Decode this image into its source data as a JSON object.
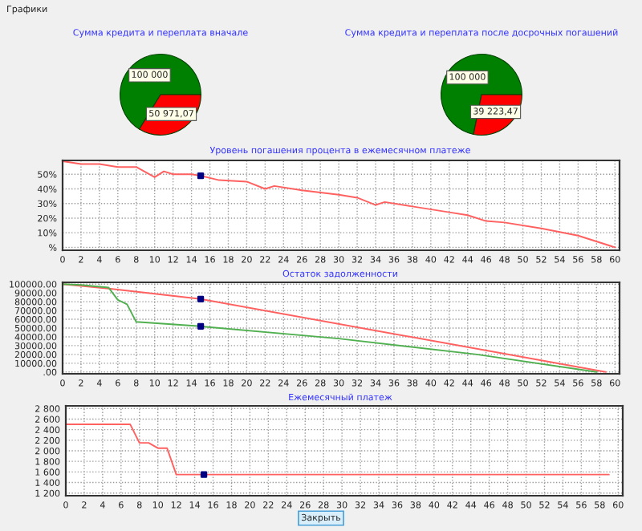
{
  "chart_data": [
    {
      "type": "pie",
      "title": "Сумма кредита и переплата вначале",
      "categories": [
        null,
        null
      ],
      "values": [
        100000,
        50971.07
      ],
      "colors": [
        "#008000",
        "#ff0000"
      ],
      "value_labels": [
        "100 000",
        "50 971,07"
      ],
      "annotations": [
        "Графики"
      ]
    },
    {
      "type": "pie",
      "title": "Сумма кредита и переплата после досрочных погашений",
      "categories": [
        null,
        null
      ],
      "values": [
        100000,
        39223.47
      ],
      "colors": [
        "#008000",
        "#ff0000"
      ],
      "value_labels": [
        "100 000",
        "39 223,47"
      ]
    },
    {
      "type": "line",
      "title": "Уровень погашения процента в ежемесячном платеже",
      "xlim": [
        0,
        60.5
      ],
      "xticks": [
        0,
        2,
        4,
        6,
        8,
        10,
        12,
        14,
        16,
        18,
        20,
        22,
        24,
        26,
        28,
        30,
        32,
        34,
        36,
        38,
        40,
        42,
        44,
        46,
        48,
        50,
        52,
        54,
        56,
        58,
        60
      ],
      "ylim": [
        -2,
        59.5
      ],
      "yticks": [
        {
          "value": 0,
          "label": "%"
        },
        {
          "value": 10,
          "label": "10%"
        },
        {
          "value": 20,
          "label": "20%"
        },
        {
          "value": 30,
          "label": "30%"
        },
        {
          "value": 40,
          "label": "40%"
        },
        {
          "value": 50,
          "label": "50%"
        }
      ],
      "grid": true,
      "series": [
        {
          "color": "#ff6060",
          "x": [
            0,
            2,
            4,
            6,
            8,
            10,
            11,
            12,
            14,
            15,
            17,
            20,
            22,
            23,
            26,
            30,
            32,
            34,
            35,
            38,
            42,
            44,
            46,
            48,
            52,
            56,
            60
          ],
          "values": [
            59,
            57,
            57,
            55,
            55,
            48,
            52,
            50,
            50,
            49,
            46,
            45,
            40,
            42,
            39,
            36,
            34,
            29,
            31,
            28,
            24,
            22,
            18,
            17,
            13,
            8,
            0
          ]
        },
        {
          "type": "scatter",
          "color": "#000080",
          "x": [
            15
          ],
          "values": [
            49
          ]
        }
      ]
    },
    {
      "type": "line",
      "title": "Остаток задолженности",
      "xlim": [
        0,
        60.5
      ],
      "xticks": [
        0,
        2,
        4,
        6,
        8,
        10,
        12,
        14,
        16,
        18,
        20,
        22,
        24,
        26,
        28,
        30,
        32,
        34,
        36,
        38,
        40,
        42,
        44,
        46,
        48,
        50,
        52,
        54,
        56,
        58,
        60
      ],
      "ylim": [
        -2000,
        102000
      ],
      "yticks": [
        {
          "value": 0,
          "label": ".00"
        },
        {
          "value": 10000,
          "label": "10000.00"
        },
        {
          "value": 20000,
          "label": "20000.00"
        },
        {
          "value": 30000,
          "label": "30000.00"
        },
        {
          "value": 40000,
          "label": "40000.00"
        },
        {
          "value": 50000,
          "label": "50000.00"
        },
        {
          "value": 60000,
          "label": "60000.00"
        },
        {
          "value": 70000,
          "label": "70000.00"
        },
        {
          "value": 80000,
          "label": "80000.00"
        },
        {
          "value": 90000,
          "label": "90000.00"
        },
        {
          "value": 100000,
          "label": "100000.00"
        }
      ],
      "grid": true,
      "series": [
        {
          "color": "#ff6060",
          "x": [
            0,
            5,
            15,
            59
          ],
          "values": [
            100000,
            95000,
            83000,
            0
          ]
        },
        {
          "color": "#50b050",
          "x": [
            0,
            2,
            5,
            6,
            7,
            8,
            15,
            30,
            45,
            58
          ],
          "values": [
            100000,
            99000,
            96000,
            82000,
            77000,
            57000,
            52000,
            38000,
            20000,
            0
          ]
        },
        {
          "type": "scatter",
          "color": "#000080",
          "x": [
            15,
            15
          ],
          "values": [
            83000,
            52000
          ]
        }
      ]
    },
    {
      "type": "line",
      "title": "Ежемесячный платеж",
      "xlim": [
        0,
        60.5
      ],
      "xticks": [
        0,
        2,
        4,
        6,
        8,
        10,
        12,
        14,
        16,
        18,
        20,
        22,
        24,
        26,
        28,
        30,
        32,
        34,
        36,
        38,
        40,
        42,
        44,
        46,
        48,
        50,
        52,
        54,
        56,
        58,
        60
      ],
      "ylim": [
        1150,
        2850
      ],
      "yticks": [
        {
          "value": 1200,
          "label": "1 200"
        },
        {
          "value": 1400,
          "label": "1 400"
        },
        {
          "value": 1600,
          "label": "1 600"
        },
        {
          "value": 1800,
          "label": "1 800"
        },
        {
          "value": 2000,
          "label": "2 000"
        },
        {
          "value": 2200,
          "label": "2 200"
        },
        {
          "value": 2400,
          "label": "2 400"
        },
        {
          "value": 2600,
          "label": "2 600"
        },
        {
          "value": 2800,
          "label": "2 800"
        }
      ],
      "grid": true,
      "series": [
        {
          "color": "#ff6060",
          "x": [
            0,
            7,
            8,
            9,
            10,
            11,
            12,
            59
          ],
          "values": [
            2500,
            2500,
            2150,
            2150,
            2050,
            2050,
            1550,
            1550
          ]
        },
        {
          "type": "scatter",
          "color": "#000080",
          "x": [
            15
          ],
          "values": [
            1550
          ]
        }
      ],
      "annotations": [
        "Закрыть"
      ]
    }
  ]
}
